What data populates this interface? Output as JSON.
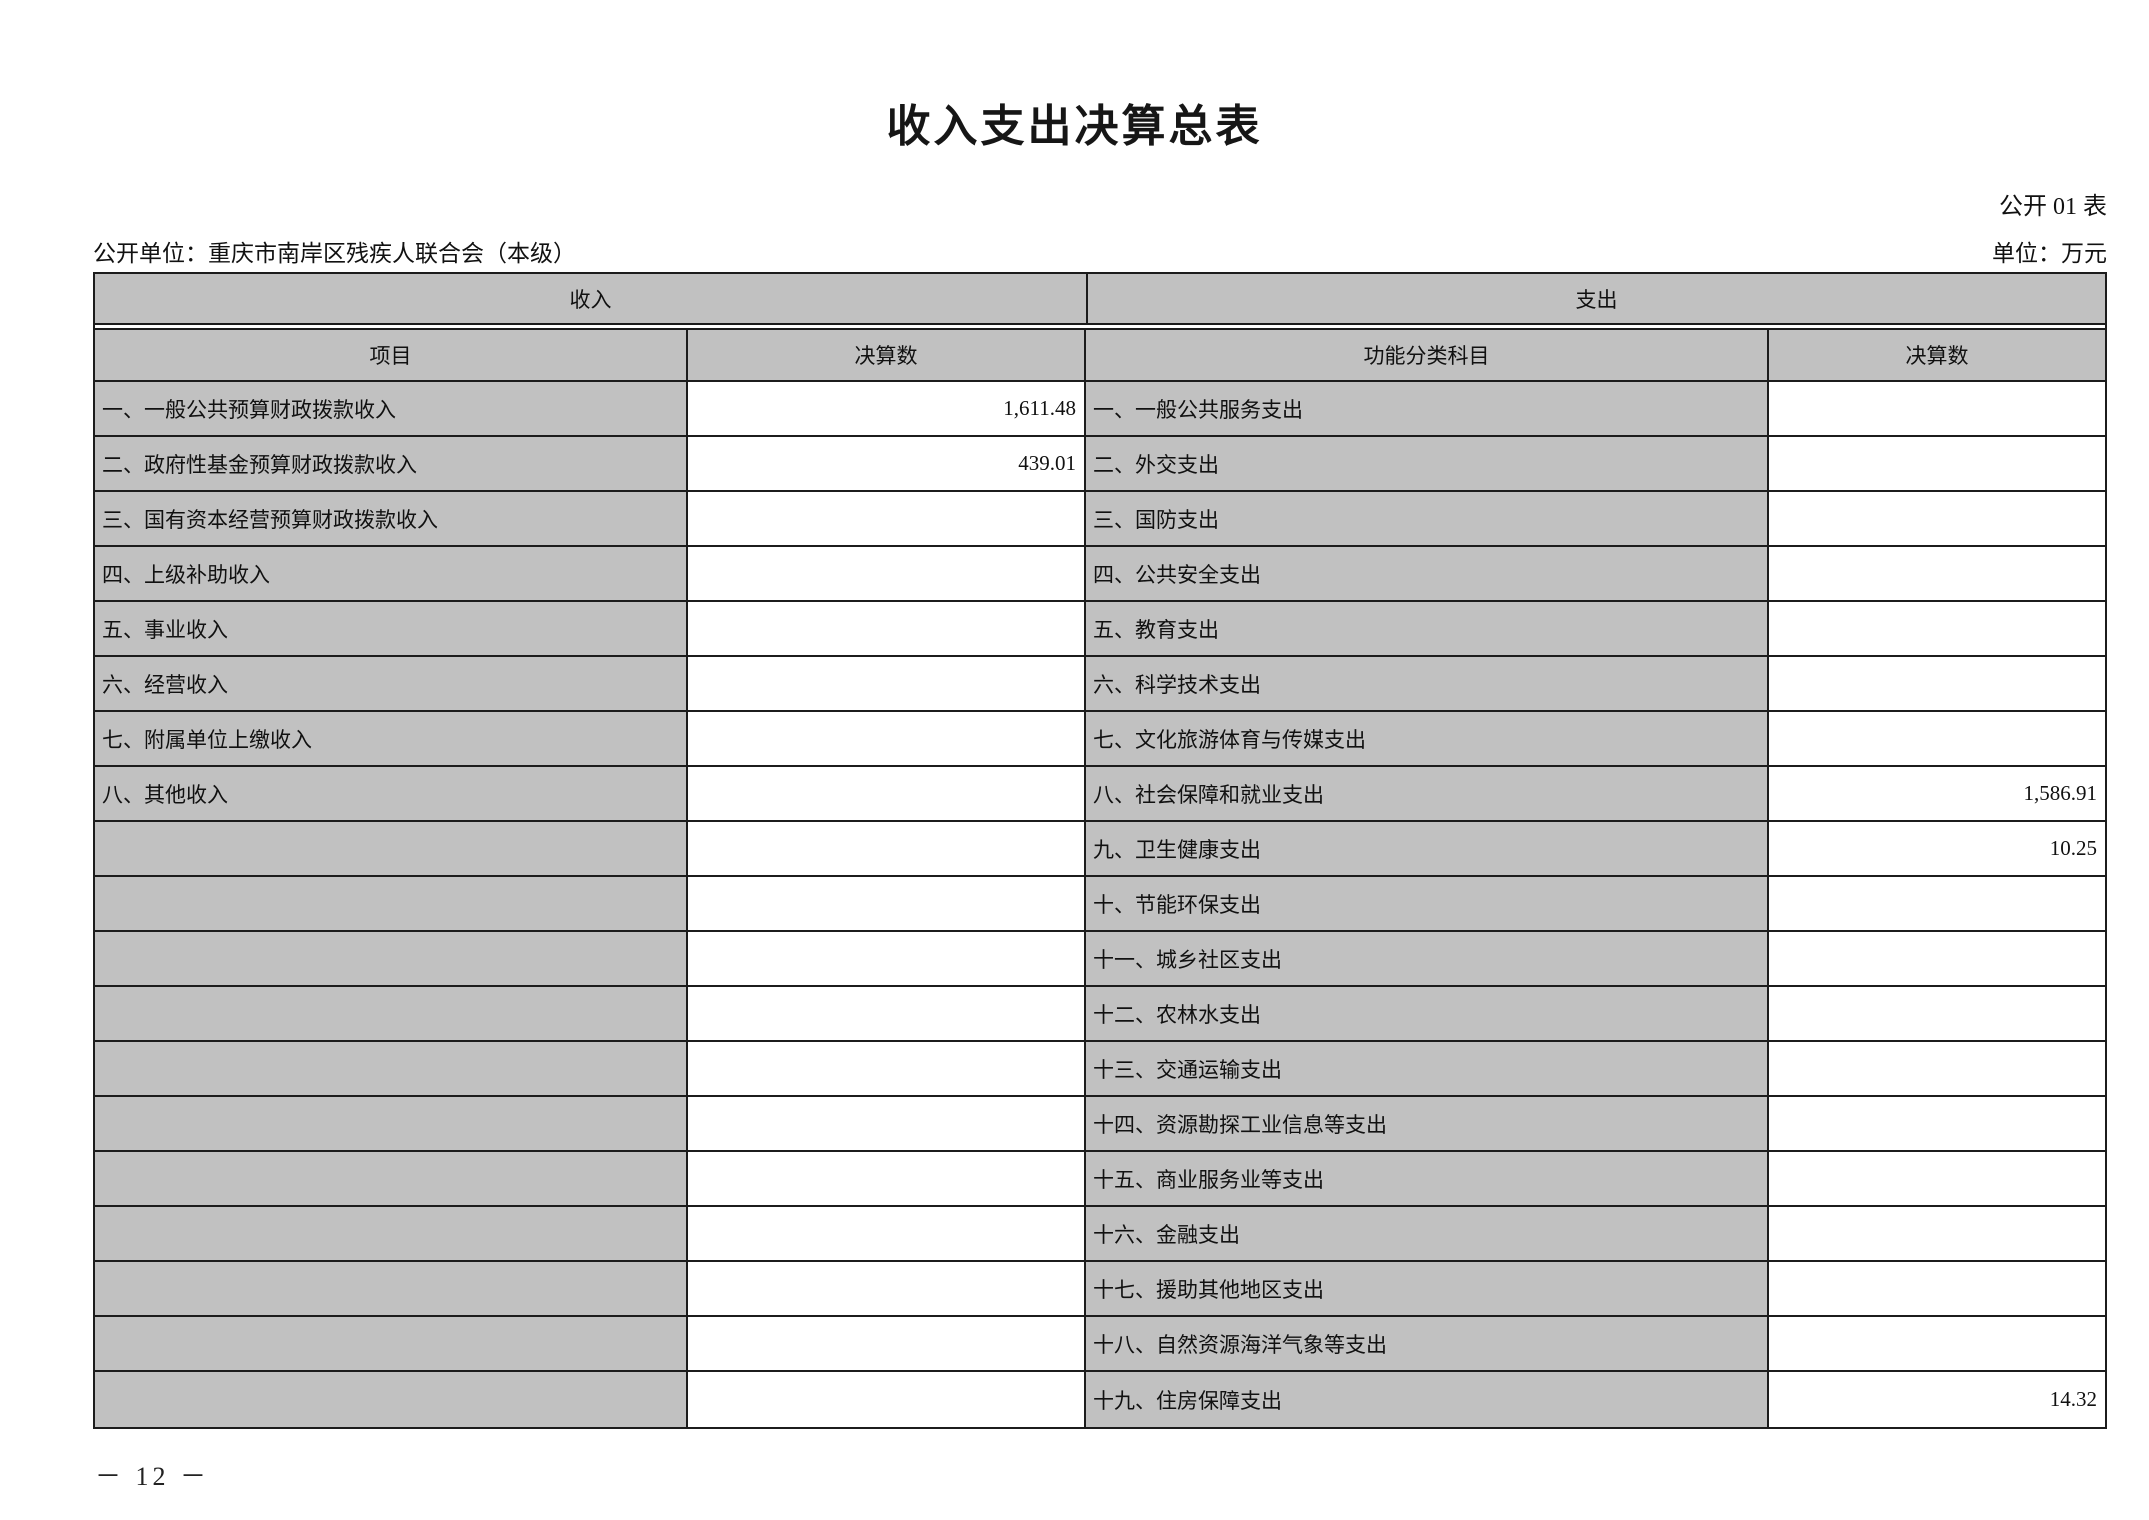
{
  "page": {
    "title": "收入支出决算总表",
    "table_code": "公开 01 表",
    "publisher_line": "公开单位：重庆市南岸区残疾人联合会（本级）",
    "unit_label": "单位：万元",
    "page_number": "－ 12 －"
  },
  "table": {
    "income_header": "收入",
    "expense_header": "支出",
    "income_item_col": "项目",
    "income_value_col": "决算数",
    "expense_item_col": "功能分类科目",
    "expense_value_col": "决算数",
    "rows": [
      {
        "income_item": "一、一般公共预算财政拨款收入",
        "income_value": "1,611.48",
        "expense_item": "一、一般公共服务支出",
        "expense_value": ""
      },
      {
        "income_item": "二、政府性基金预算财政拨款收入",
        "income_value": "439.01",
        "expense_item": "二、外交支出",
        "expense_value": ""
      },
      {
        "income_item": "三、国有资本经营预算财政拨款收入",
        "income_value": "",
        "expense_item": "三、国防支出",
        "expense_value": ""
      },
      {
        "income_item": "四、上级补助收入",
        "income_value": "",
        "expense_item": "四、公共安全支出",
        "expense_value": ""
      },
      {
        "income_item": "五、事业收入",
        "income_value": "",
        "expense_item": "五、教育支出",
        "expense_value": ""
      },
      {
        "income_item": "六、经营收入",
        "income_value": "",
        "expense_item": "六、科学技术支出",
        "expense_value": ""
      },
      {
        "income_item": "七、附属单位上缴收入",
        "income_value": "",
        "expense_item": "七、文化旅游体育与传媒支出",
        "expense_value": ""
      },
      {
        "income_item": "八、其他收入",
        "income_value": "",
        "expense_item": "八、社会保障和就业支出",
        "expense_value": "1,586.91"
      },
      {
        "income_item": "",
        "income_value": "",
        "expense_item": "九、卫生健康支出",
        "expense_value": "10.25"
      },
      {
        "income_item": "",
        "income_value": "",
        "expense_item": "十、节能环保支出",
        "expense_value": ""
      },
      {
        "income_item": "",
        "income_value": "",
        "expense_item": "十一、城乡社区支出",
        "expense_value": ""
      },
      {
        "income_item": "",
        "income_value": "",
        "expense_item": "十二、农林水支出",
        "expense_value": ""
      },
      {
        "income_item": "",
        "income_value": "",
        "expense_item": "十三、交通运输支出",
        "expense_value": ""
      },
      {
        "income_item": "",
        "income_value": "",
        "expense_item": "十四、资源勘探工业信息等支出",
        "expense_value": ""
      },
      {
        "income_item": "",
        "income_value": "",
        "expense_item": "十五、商业服务业等支出",
        "expense_value": ""
      },
      {
        "income_item": "",
        "income_value": "",
        "expense_item": "十六、金融支出",
        "expense_value": ""
      },
      {
        "income_item": "",
        "income_value": "",
        "expense_item": "十七、援助其他地区支出",
        "expense_value": ""
      },
      {
        "income_item": "",
        "income_value": "",
        "expense_item": "十八、自然资源海洋气象等支出",
        "expense_value": ""
      },
      {
        "income_item": "",
        "income_value": "",
        "expense_item": "十九、住房保障支出",
        "expense_value": "14.32"
      }
    ]
  },
  "colors": {
    "cell_gray": "#c1c1c1",
    "border": "#1c1c1c"
  }
}
